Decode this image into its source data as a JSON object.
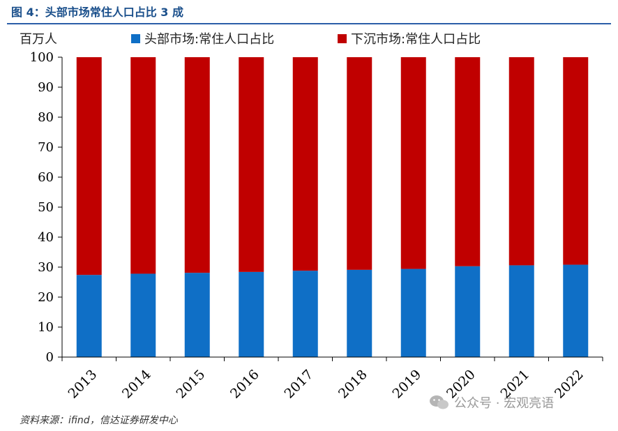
{
  "header": {
    "title": "图 4：头部市场常住人口占比 3 成"
  },
  "footer": {
    "source": "资料来源：ifind，信达证券研发中心",
    "watermark": "公众号 · 宏观亮语",
    "watermark_icon": "wechat-icon"
  },
  "chart_data": {
    "type": "bar",
    "stacked": true,
    "ylabel": "百万人",
    "xlabel": "",
    "ylim": [
      0,
      100
    ],
    "yticks": [
      0,
      10,
      20,
      30,
      40,
      50,
      60,
      70,
      80,
      90,
      100
    ],
    "categories": [
      "2013",
      "2014",
      "2015",
      "2016",
      "2017",
      "2018",
      "2019",
      "2020",
      "2021",
      "2022"
    ],
    "series": [
      {
        "name": "头部市场:常住人口占比",
        "color": "#0f6fc6",
        "values": [
          27.4,
          27.8,
          28.1,
          28.4,
          28.8,
          29.1,
          29.4,
          30.3,
          30.6,
          30.8
        ]
      },
      {
        "name": "下沉市场:常住人口占比",
        "color": "#c00000",
        "values": [
          72.6,
          72.2,
          71.9,
          71.6,
          71.2,
          70.9,
          70.6,
          69.7,
          69.4,
          69.2
        ]
      }
    ],
    "grid": false,
    "legend": "top"
  }
}
